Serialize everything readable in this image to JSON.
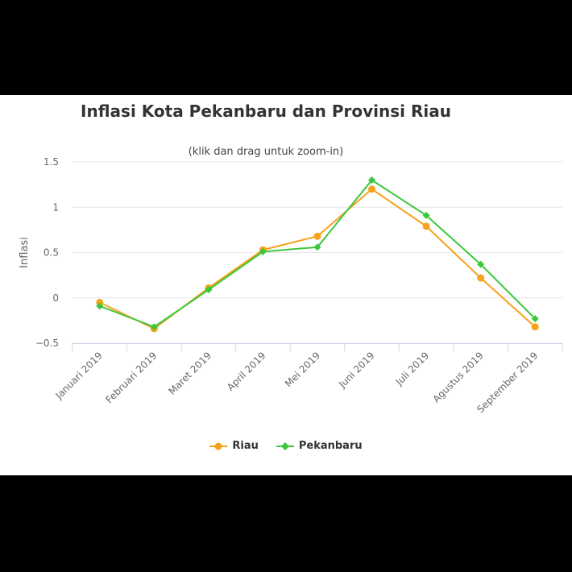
{
  "chart_data": {
    "type": "line",
    "title": "Inflasi Kota Pekanbaru dan Provinsi Riau",
    "subtitle": "(klik dan drag untuk zoom-in)",
    "ylabel": "Inflasi",
    "xlabel": "",
    "ylim": [
      -0.5,
      1.5
    ],
    "yticks": [
      -0.5,
      0,
      0.5,
      1,
      1.5
    ],
    "ytick_labels": [
      "−0.5",
      "0",
      "0.5",
      "1",
      "1.5"
    ],
    "grid": true,
    "legend_position": "bottom-center",
    "categories": [
      "Januari 2019",
      "Februari 2019",
      "Maret 2019",
      "April 2019",
      "Mei 2019",
      "Juni 2019",
      "Juli 2019",
      "Agustus 2019",
      "September 2019"
    ],
    "series": [
      {
        "name": "Riau",
        "color": "#f7a21b",
        "marker": "circle",
        "values": [
          -0.05,
          -0.34,
          0.11,
          0.53,
          0.68,
          1.2,
          0.79,
          0.22,
          -0.32
        ]
      },
      {
        "name": "Pekanbaru",
        "color": "#3cc83c",
        "marker": "diamond",
        "values": [
          -0.09,
          -0.32,
          0.09,
          0.51,
          0.56,
          1.3,
          0.91,
          0.37,
          -0.23
        ]
      }
    ]
  }
}
